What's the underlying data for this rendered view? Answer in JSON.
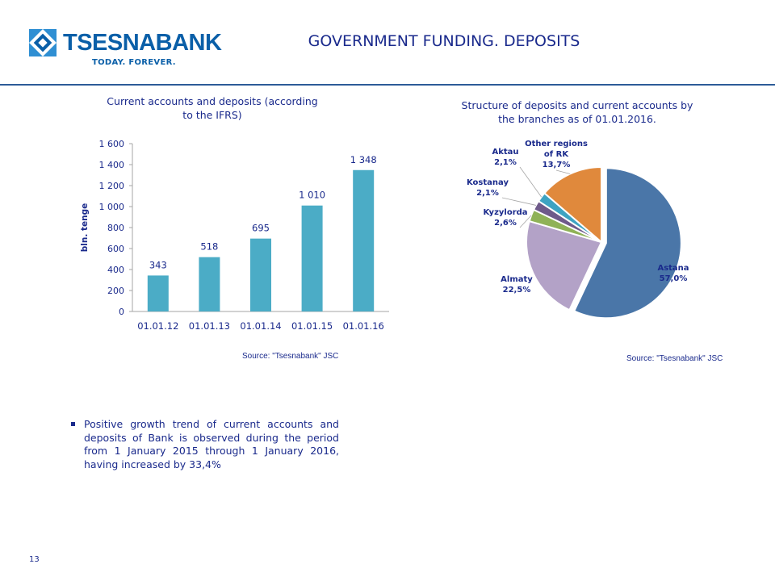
{
  "header": {
    "logo_name": "TSESNABANK",
    "logo_tagline": "TODAY. FOREVER.",
    "title": "GOVERNMENT FUNDING. DEPOSITS",
    "brand_color": "#0a5fa8",
    "title_color": "#1a2a8c"
  },
  "chart_data": [
    {
      "type": "bar",
      "title": "Current accounts and deposits (according to the IFRS)",
      "ylabel": "bln. tenge",
      "xlabel": "",
      "categories": [
        "01.01.12",
        "01.01.13",
        "01.01.14",
        "01.01.15",
        "01.01.16"
      ],
      "values": [
        343,
        518,
        695,
        1010,
        1348
      ],
      "value_labels": [
        "343",
        "518",
        "695",
        "1 010",
        "1 348"
      ],
      "ylim": [
        0,
        1600
      ],
      "yticks": [
        0,
        200,
        400,
        600,
        800,
        1000,
        1200,
        1400,
        1600
      ],
      "ytick_labels": [
        "0",
        "200",
        "400",
        "600",
        "800",
        "1 000",
        "1 200",
        "1 400",
        "1 600"
      ],
      "bar_color": "#4bacc6",
      "grid": false,
      "source": "Source: \"Tsesnabank\" JSC"
    },
    {
      "type": "pie",
      "title": "Structure of deposits and current accounts by the branches as of 01.01.2016.",
      "slices": [
        {
          "label": "Astana",
          "value": 57.0,
          "value_label": "57,0%",
          "color": "#4a76a8"
        },
        {
          "label": "Almaty",
          "value": 22.5,
          "value_label": "22,5%",
          "color": "#b3a2c7"
        },
        {
          "label": "Kyzylorda",
          "value": 2.6,
          "value_label": "2,6%",
          "color": "#8fb257"
        },
        {
          "label": "Kostanay",
          "value": 2.1,
          "value_label": "2,1%",
          "color": "#6e5a8a"
        },
        {
          "label": "Aktau",
          "value": 2.1,
          "value_label": "2,1%",
          "color": "#3ea3c2"
        },
        {
          "label": "Other regions of RK",
          "value": 13.7,
          "value_label": "13,7%",
          "color": "#e0893c"
        }
      ],
      "exploded": "Astana",
      "source": "Source: \"Tsesnabank\" JSC"
    }
  ],
  "bullets": [
    "Positive growth trend of current accounts and deposits of Bank is observed during the period from 1 January 2015 through 1 January 2016, having increased by 33,4%"
  ],
  "page_number": "13"
}
